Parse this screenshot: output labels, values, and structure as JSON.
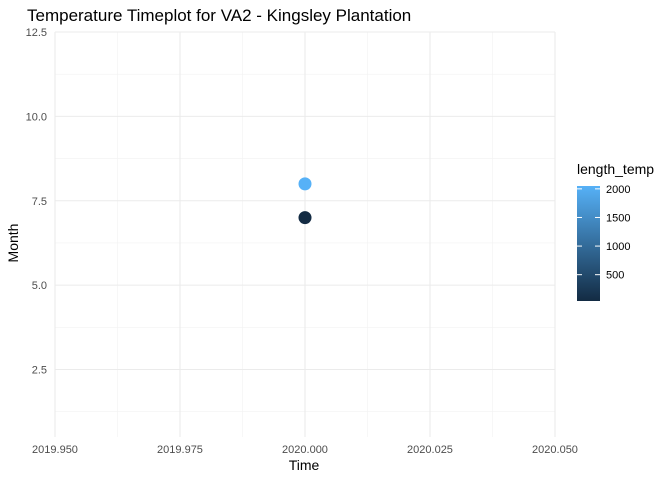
{
  "chart_data": {
    "type": "scatter",
    "title": "Temperature Timeplot for VA2 - Kingsley Plantation",
    "xlabel": "Time",
    "ylabel": "Month",
    "xlim": [
      2019.95,
      2020.05
    ],
    "ylim": [
      0.5,
      12.5
    ],
    "x_ticks": [
      2019.95,
      2019.975,
      2020.0,
      2020.025,
      2020.05
    ],
    "x_tick_labels": [
      "2019.950",
      "2019.975",
      "2020.000",
      "2020.025",
      "2020.050"
    ],
    "y_ticks": [
      2.5,
      5.0,
      7.5,
      10.0,
      12.5
    ],
    "y_tick_labels": [
      "2.5",
      "5.0",
      "7.5",
      "10.0",
      "12.5"
    ],
    "grid": true,
    "points": [
      {
        "x": 2020.0,
        "y": 8,
        "length_temp": 2050
      },
      {
        "x": 2020.0,
        "y": 7,
        "length_temp": 40
      }
    ],
    "legend": {
      "title": "length_temp",
      "position": "right",
      "range": [
        40,
        2050
      ],
      "breaks": [
        500,
        1000,
        1500,
        2000
      ],
      "break_labels": [
        "500",
        "1000",
        "1500",
        "2000"
      ],
      "low_color": "#132B43",
      "high_color": "#56B1F7"
    }
  }
}
